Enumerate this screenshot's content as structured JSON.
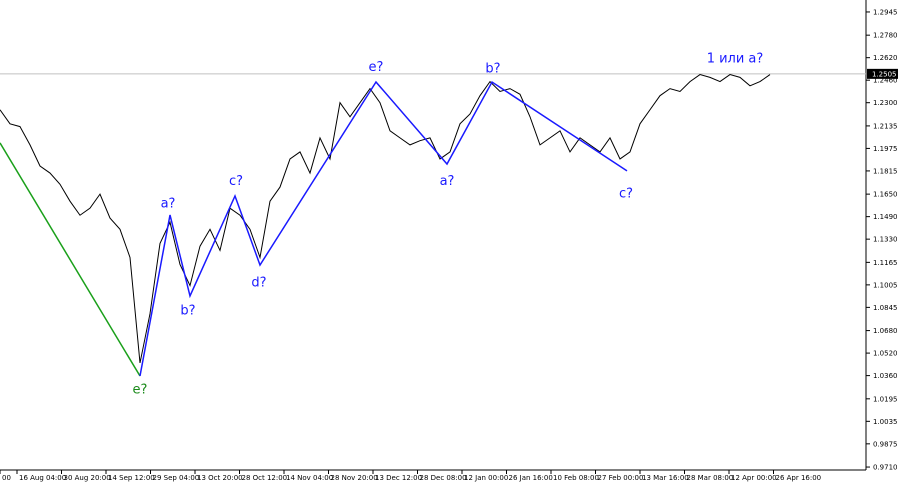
{
  "chart_data": {
    "type": "line",
    "xlim": [
      0,
      1730
    ],
    "ylim": [
      0.9689,
      1.303
    ],
    "xticks": [
      {
        "value": 0,
        "label": "00"
      },
      {
        "value": 34,
        "label": "16 Aug 04:00"
      },
      {
        "value": 123,
        "label": "30 Aug 20:00"
      },
      {
        "value": 212,
        "label": "14 Sep 12:00"
      },
      {
        "value": 301,
        "label": "29 Sep 04:00"
      },
      {
        "value": 390,
        "label": "13 Oct 20:00"
      },
      {
        "value": 479,
        "label": "28 Oct 12:00"
      },
      {
        "value": 568,
        "label": "14 Nov 04:00"
      },
      {
        "value": 657,
        "label": "28 Nov 20:00"
      },
      {
        "value": 746,
        "label": "13 Dec 12:00"
      },
      {
        "value": 835,
        "label": "28 Dec 08:00"
      },
      {
        "value": 924,
        "label": "12 Jan 00:00"
      },
      {
        "value": 1013,
        "label": "26 Jan 16:00"
      },
      {
        "value": 1102,
        "label": "10 Feb 08:00"
      },
      {
        "value": 1191,
        "label": "27 Feb 00:00"
      },
      {
        "value": 1280,
        "label": "13 Mar 16:00"
      },
      {
        "value": 1369,
        "label": "28 Mar 08:00"
      },
      {
        "value": 1458,
        "label": "12 Apr 00:00"
      },
      {
        "value": 1547,
        "label": "26 Apr 16:00"
      }
    ],
    "yticks": [
      1.2945,
      {
        "value": 1.278,
        "label": "1.2780"
      },
      {
        "value": 1.262,
        "label": "1.2620"
      },
      {
        "value": 1.246,
        "label": "1.2460"
      },
      {
        "value": 1.23,
        "label": "1.2300"
      },
      1.2135,
      1.1975,
      1.1815,
      {
        "value": 1.165,
        "label": "1.1650"
      },
      {
        "value": 1.149,
        "label": "1.1490"
      },
      {
        "value": 1.133,
        "label": "1.1330"
      },
      1.1165,
      1.1005,
      1.0845,
      {
        "value": 1.068,
        "label": "1.0680"
      },
      {
        "value": 1.052,
        "label": "1.0520"
      },
      {
        "value": 1.036,
        "label": "1.0360"
      },
      1.0195,
      1.0035,
      0.9875,
      {
        "value": 0.971,
        "label": "0.9710"
      }
    ],
    "current_price": 1.2505,
    "series": [
      {
        "color": "#000000",
        "x": [
          0,
          20,
          40,
          60,
          80,
          100,
          120,
          140,
          160,
          180,
          200,
          220,
          240,
          260,
          280,
          300,
          320,
          340,
          360,
          380,
          400,
          420,
          440,
          460,
          480,
          500,
          520,
          540,
          560,
          580,
          600,
          620,
          640,
          660,
          680,
          700,
          720,
          740,
          760,
          780,
          800,
          820,
          840,
          860,
          880,
          900,
          920,
          940,
          960,
          980,
          1000,
          1020,
          1040,
          1060,
          1080,
          1100,
          1120,
          1140,
          1160,
          1180,
          1200,
          1220,
          1240,
          1260,
          1280,
          1300,
          1320,
          1340,
          1360,
          1380,
          1400,
          1420,
          1440,
          1460,
          1480,
          1500,
          1520,
          1540
        ],
        "values": [
          1.225,
          1.215,
          1.213,
          1.2,
          1.185,
          1.18,
          1.172,
          1.16,
          1.15,
          1.155,
          1.165,
          1.148,
          1.14,
          1.12,
          1.045,
          1.08,
          1.13,
          1.145,
          1.115,
          1.1,
          1.128,
          1.14,
          1.125,
          1.155,
          1.15,
          1.14,
          1.12,
          1.16,
          1.17,
          1.19,
          1.195,
          1.18,
          1.205,
          1.19,
          1.23,
          1.22,
          1.23,
          1.24,
          1.23,
          1.21,
          1.205,
          1.2,
          1.203,
          1.205,
          1.19,
          1.195,
          1.215,
          1.222,
          1.235,
          1.245,
          1.238,
          1.24,
          1.236,
          1.22,
          1.2,
          1.205,
          1.21,
          1.195,
          1.205,
          1.2,
          1.195,
          1.205,
          1.19,
          1.195,
          1.215,
          1.225,
          1.235,
          1.24,
          1.238,
          1.245,
          1.25,
          1.248,
          1.245,
          1.25,
          1.248,
          1.242,
          1.245,
          1.25
        ]
      },
      {
        "color": "#1aa01a",
        "x": [
          0,
          280
        ],
        "values": [
          1.2014,
          1.0357
        ]
      },
      {
        "color": "#1a1aff",
        "x": [
          280,
          340,
          380,
          470,
          520,
          752,
          894,
          984,
          1254
        ],
        "values": [
          1.0357,
          1.1502,
          1.0926,
          1.1637,
          1.1146,
          1.2447,
          1.1864,
          1.2447,
          1.1815
        ]
      }
    ],
    "annotations": [
      {
        "text": "e?",
        "x": 280,
        "y": 1.027,
        "color": "#1a8a1a"
      },
      {
        "text": "a?",
        "x": 336,
        "y": 1.159,
        "color": "#1a1aff"
      },
      {
        "text": "b?",
        "x": 376,
        "y": 1.083,
        "color": "#1a1aff"
      },
      {
        "text": "c?",
        "x": 472,
        "y": 1.175,
        "color": "#1a1aff"
      },
      {
        "text": "d?",
        "x": 518,
        "y": 1.103,
        "color": "#1a1aff"
      },
      {
        "text": "e?",
        "x": 752,
        "y": 1.256,
        "color": "#1a1aff"
      },
      {
        "text": "a?",
        "x": 894,
        "y": 1.175,
        "color": "#1a1aff"
      },
      {
        "text": "b?",
        "x": 986,
        "y": 1.255,
        "color": "#1a1aff"
      },
      {
        "text": "c?",
        "x": 1252,
        "y": 1.166,
        "color": "#1a1aff"
      },
      {
        "text": "1 или a?",
        "x": 1470,
        "y": 1.262,
        "color": "#1a1aff"
      }
    ]
  }
}
